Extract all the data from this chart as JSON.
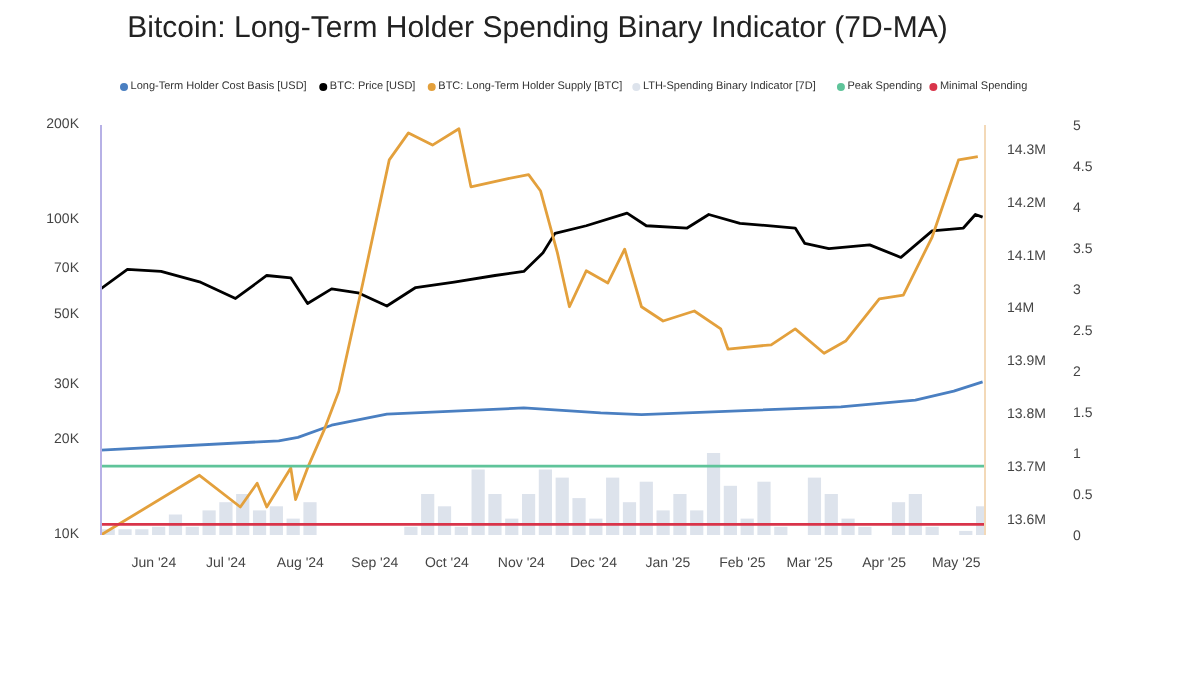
{
  "chart_data": {
    "type": "line",
    "title": "Bitcoin: Long-Term Holder Spending Binary Indicator (7D-MA)",
    "log": "y",
    "grid": false,
    "legend": "top",
    "xlim": [
      "2024-05-10",
      "2025-05-13"
    ],
    "xticks": [
      {
        "value": "2024-06-01",
        "label": "Jun '24"
      },
      {
        "value": "2024-07-01",
        "label": "Jul '24"
      },
      {
        "value": "2024-08-01",
        "label": "Aug '24"
      },
      {
        "value": "2024-09-01",
        "label": "Sep '24"
      },
      {
        "value": "2024-10-01",
        "label": "Oct '24"
      },
      {
        "value": "2024-11-01",
        "label": "Nov '24"
      },
      {
        "value": "2024-12-01",
        "label": "Dec '24"
      },
      {
        "value": "2025-01-01",
        "label": "Jan '25"
      },
      {
        "value": "2025-02-01",
        "label": "Feb '25"
      },
      {
        "value": "2025-03-01",
        "label": "Mar '25"
      },
      {
        "value": "2025-04-01",
        "label": "Apr '25"
      },
      {
        "value": "2025-05-01",
        "label": "May '25"
      }
    ],
    "ylim": [
      10000,
      200000
    ],
    "yticks": [
      {
        "value": 10000,
        "label": "10K"
      },
      {
        "value": 20000,
        "label": "20K"
      },
      {
        "value": 30000,
        "label": "30K"
      },
      {
        "value": 50000,
        "label": "50K"
      },
      {
        "value": 70000,
        "label": "70K"
      },
      {
        "value": 100000,
        "label": "100K"
      },
      {
        "value": 200000,
        "label": "200K"
      }
    ],
    "y2lim": [
      13573000,
      14349000
    ],
    "y2ticks": [
      {
        "value": 13600000,
        "label": "13.6M"
      },
      {
        "value": 13700000,
        "label": "13.7M"
      },
      {
        "value": 13800000,
        "label": "13.8M"
      },
      {
        "value": 13900000,
        "label": "13.9M"
      },
      {
        "value": 14000000,
        "label": "14M"
      },
      {
        "value": 14100000,
        "label": "14.1M"
      },
      {
        "value": 14200000,
        "label": "14.2M"
      },
      {
        "value": 14300000,
        "label": "14.3M"
      }
    ],
    "y3lim": [
      0,
      5
    ],
    "y3ticks": [
      0,
      0.5,
      1,
      1.5,
      2,
      2.5,
      3,
      3.5,
      4,
      4.5,
      5
    ],
    "series": [
      {
        "name": "Long-Term Holder Cost Basis [USD]",
        "color": "#4a7fc1",
        "x": [
          "2024-05-10",
          "2024-07-23",
          "2024-07-31",
          "2024-08-14",
          "2024-09-06",
          "2024-11-02",
          "2024-12-04",
          "2024-12-21",
          "2025-03-14",
          "2025-04-14",
          "2025-04-30",
          "2025-05-12"
        ],
        "values": [
          18600,
          19900,
          20400,
          22300,
          24200,
          25300,
          24400,
          24100,
          25500,
          26800,
          28600,
          30600
        ]
      },
      {
        "name": "BTC: Price [USD]",
        "color": "#000000",
        "x": [
          "2024-05-10",
          "2024-05-21",
          "2024-06-04",
          "2024-06-20",
          "2024-07-05",
          "2024-07-18",
          "2024-07-28",
          "2024-08-04",
          "2024-08-14",
          "2024-08-25",
          "2024-09-06",
          "2024-09-18",
          "2024-10-04",
          "2024-10-21",
          "2024-11-02",
          "2024-11-10",
          "2024-11-15",
          "2024-11-28",
          "2024-12-15",
          "2024-12-23",
          "2025-01-09",
          "2025-01-18",
          "2025-01-31",
          "2025-02-23",
          "2025-02-27",
          "2025-03-09",
          "2025-03-26",
          "2025-04-08",
          "2025-04-21",
          "2025-05-04",
          "2025-05-09",
          "2025-05-12"
        ],
        "values": [
          60500,
          69600,
          68600,
          63600,
          56300,
          66600,
          65500,
          54300,
          60400,
          58700,
          53300,
          61000,
          63500,
          66600,
          68600,
          78600,
          90600,
          95800,
          105000,
          95800,
          94200,
          104000,
          97500,
          94200,
          84200,
          81000,
          83300,
          76000,
          92300,
          94200,
          104000,
          102000
        ]
      },
      {
        "name": "BTC: Long-Term Holder Supply [BTC]",
        "axis": "y2",
        "color": "#e3a03c",
        "x": [
          "2024-05-10",
          "2024-06-20",
          "2024-07-07",
          "2024-07-14",
          "2024-07-18",
          "2024-07-28",
          "2024-07-30",
          "2024-08-04",
          "2024-08-11",
          "2024-08-17",
          "2024-08-27",
          "2024-09-07",
          "2024-09-15",
          "2024-09-25",
          "2024-10-06",
          "2024-10-11",
          "2024-10-26",
          "2024-11-04",
          "2024-11-09",
          "2024-11-16",
          "2024-11-21",
          "2024-11-28",
          "2024-12-07",
          "2024-12-14",
          "2024-12-21",
          "2024-12-30",
          "2025-01-12",
          "2025-01-23",
          "2025-01-26",
          "2025-02-13",
          "2025-02-23",
          "2025-03-07",
          "2025-03-16",
          "2025-03-30",
          "2025-04-09",
          "2025-04-21",
          "2025-05-02",
          "2025-05-10"
        ],
        "values": [
          13573000,
          13686000,
          13626000,
          13671000,
          13626000,
          13700000,
          13640000,
          13700000,
          13773000,
          13845000,
          14050000,
          14283000,
          14334000,
          14311000,
          14342000,
          14232000,
          14247000,
          14255000,
          14224000,
          14107000,
          14005000,
          14073000,
          14050000,
          14114000,
          14005000,
          13978000,
          13997000,
          13963000,
          13925000,
          13933000,
          13963000,
          13917000,
          13940000,
          14020000,
          14027000,
          14137000,
          14283000,
          14289000
        ]
      },
      {
        "name": "LTH-Spending Binary Indicator [7D]",
        "type": "bar",
        "axis": "y3",
        "color": "#dde3ec",
        "x": [
          "2024-05-13",
          "2024-05-20",
          "2024-05-27",
          "2024-06-03",
          "2024-06-10",
          "2024-06-17",
          "2024-06-24",
          "2024-07-01",
          "2024-07-08",
          "2024-07-15",
          "2024-07-22",
          "2024-07-29",
          "2024-08-05",
          "2024-08-12",
          "2024-08-19",
          "2024-08-26",
          "2024-09-02",
          "2024-09-09",
          "2024-09-16",
          "2024-09-23",
          "2024-09-30",
          "2024-10-07",
          "2024-10-14",
          "2024-10-21",
          "2024-10-28",
          "2024-11-04",
          "2024-11-11",
          "2024-11-18",
          "2024-11-25",
          "2024-12-02",
          "2024-12-09",
          "2024-12-16",
          "2024-12-23",
          "2024-12-30",
          "2025-01-06",
          "2025-01-13",
          "2025-01-20",
          "2025-01-27",
          "2025-02-03",
          "2025-02-10",
          "2025-02-17",
          "2025-02-24",
          "2025-03-03",
          "2025-03-10",
          "2025-03-17",
          "2025-03-24",
          "2025-03-31",
          "2025-04-07",
          "2025-04-14",
          "2025-04-21",
          "2025-04-28",
          "2025-05-05",
          "2025-05-12"
        ],
        "values": [
          0.07,
          0.07,
          0.07,
          0.1,
          0.25,
          0.1,
          0.3,
          0.4,
          0.5,
          0.3,
          0.35,
          0.2,
          0.4,
          0,
          0,
          0,
          0,
          0,
          0.1,
          0.5,
          0.35,
          0.1,
          0.8,
          0.5,
          0.2,
          0.5,
          0.8,
          0.7,
          0.45,
          0.2,
          0.7,
          0.4,
          0.65,
          0.3,
          0.5,
          0.3,
          1.0,
          0.6,
          0.2,
          0.65,
          0.1,
          0,
          0.7,
          0.5,
          0.2,
          0.1,
          0,
          0.4,
          0.5,
          0.1,
          0,
          0.05,
          0.35
        ]
      },
      {
        "name": "Peak Spending",
        "axis": "y3",
        "color": "#5fc49a",
        "x": [
          "2024-05-10",
          "2025-05-13"
        ],
        "values": [
          0.84,
          0.84
        ]
      },
      {
        "name": "Minimal Spending",
        "axis": "y3",
        "color": "#d9344a",
        "x": [
          "2024-05-10",
          "2025-05-13"
        ],
        "values": [
          0.13,
          0.13
        ]
      }
    ]
  }
}
